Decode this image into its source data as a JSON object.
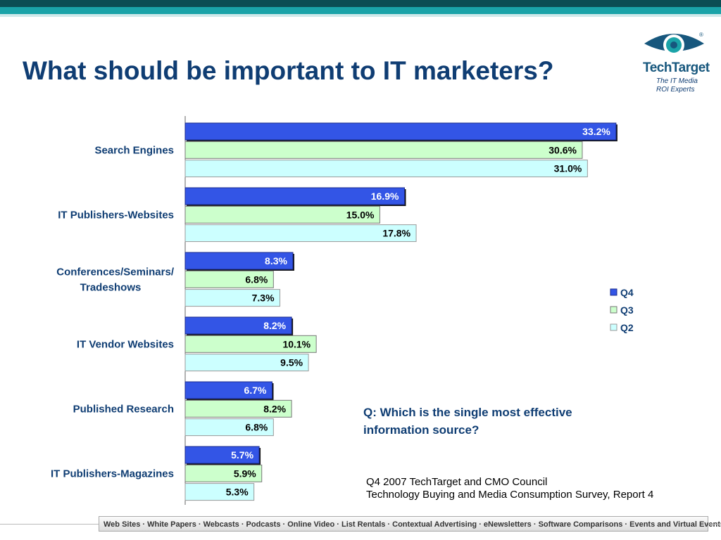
{
  "slide": {
    "title": "What should be important to IT marketers?",
    "question": "Q: Which is the single most effective information source?",
    "source_line1": "Q4 2007 TechTarget and CMO Council",
    "source_line2": "Technology Buying and Media Consumption Survey, Report 4",
    "footer": "Web Sites · White Papers · Webcasts · Podcasts · Online Video · List Rentals · Contextual Advertising · eNewsletters · Software Comparisons · Events and Virtual Events · Print"
  },
  "logo": {
    "name": "TechTarget",
    "tagline1": "The IT Media",
    "tagline2": "ROI Experts",
    "registered": "®"
  },
  "colors": {
    "q4": "#3355e6",
    "q3": "#ccffcc",
    "q2": "#ccffff",
    "title": "#0f3d73"
  },
  "chart_data": {
    "type": "bar",
    "orientation": "horizontal",
    "categories": [
      [
        "Search Engines"
      ],
      [
        "IT Publishers-Websites"
      ],
      [
        "Conferences/Seminars/",
        "Tradeshows"
      ],
      [
        "IT Vendor Websites"
      ],
      [
        "Published Research"
      ],
      [
        "IT Publishers-Magazines"
      ]
    ],
    "series": [
      {
        "name": "Q4",
        "values": [
          33.2,
          16.9,
          8.3,
          8.2,
          6.7,
          5.7
        ]
      },
      {
        "name": "Q3",
        "values": [
          30.6,
          15.0,
          6.8,
          10.1,
          8.2,
          5.9
        ]
      },
      {
        "name": "Q2",
        "values": [
          31.0,
          17.8,
          7.3,
          9.5,
          6.8,
          5.3
        ]
      }
    ],
    "value_suffix": "%",
    "xlim": [
      0,
      36
    ],
    "legend_position": "right",
    "grid": false
  }
}
